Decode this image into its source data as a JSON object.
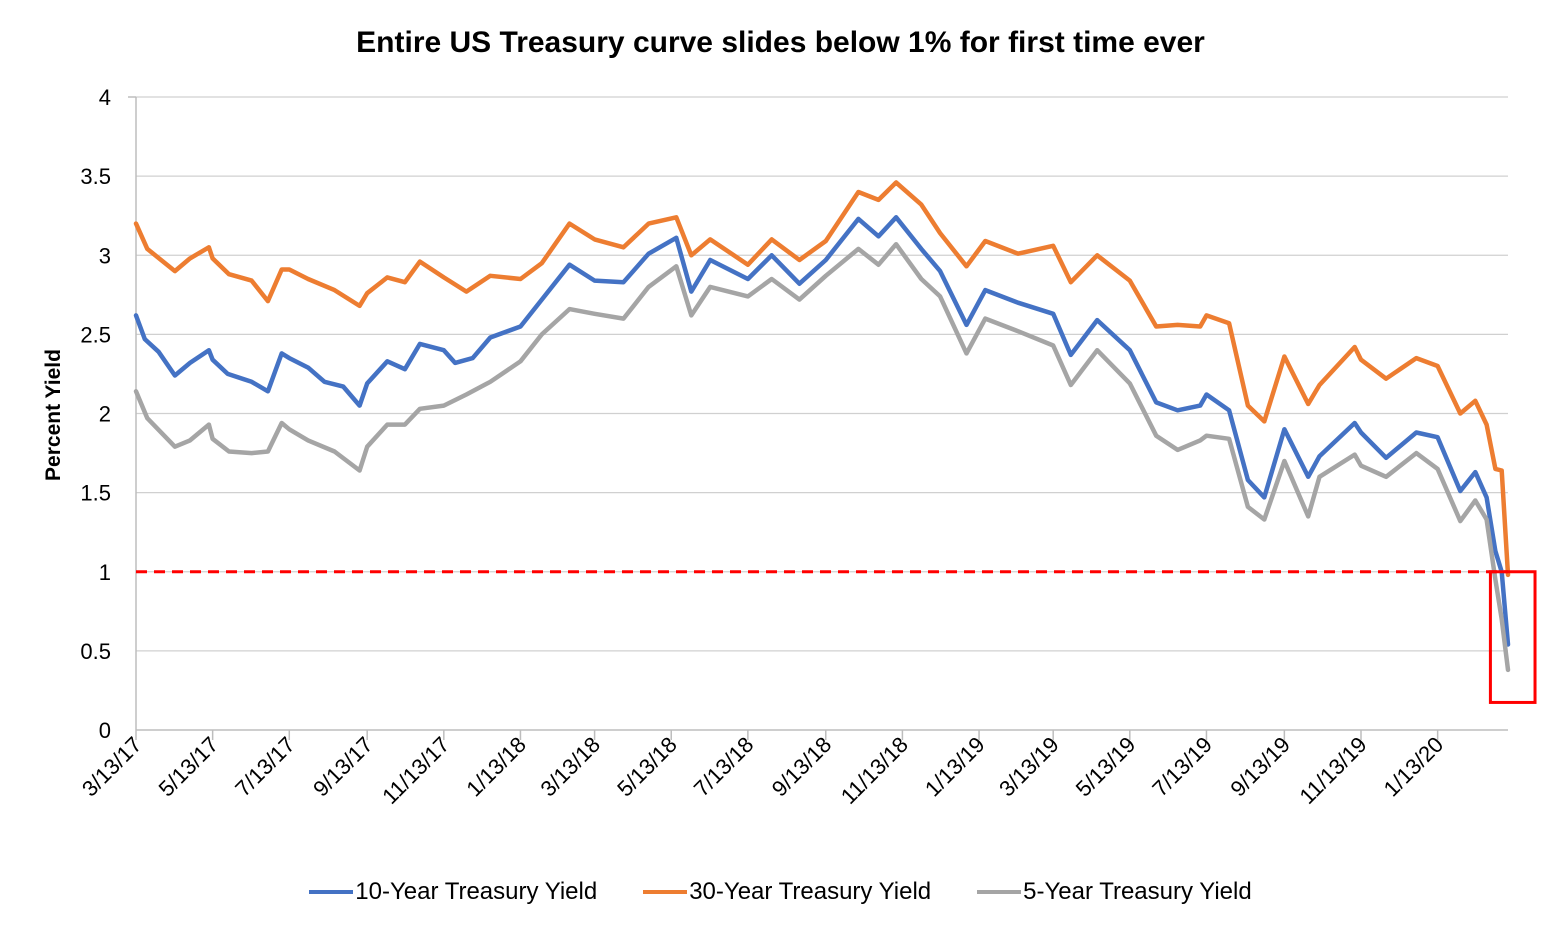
{
  "chart_data": {
    "type": "line",
    "title": "Entire US Treasury curve slides below 1% for first time ever",
    "ylabel": "Percent Yield",
    "xlabel": "",
    "ylim": [
      0,
      4
    ],
    "yticks": [
      "0",
      "0.5",
      "1",
      "1.5",
      "2",
      "2.5",
      "3",
      "3.5",
      "4"
    ],
    "xticks": [
      "3/13/17",
      "5/13/17",
      "7/13/17",
      "9/13/17",
      "11/13/17",
      "1/13/18",
      "3/13/18",
      "5/13/18",
      "7/13/18",
      "9/13/18",
      "11/13/18",
      "1/13/19",
      "3/13/19",
      "5/13/19",
      "7/13/19",
      "9/13/19",
      "11/13/19",
      "1/13/20"
    ],
    "x_range": [
      "2017-03-13",
      "2020-03-09"
    ],
    "grid": true,
    "legend_position": "bottom",
    "reference_line": {
      "value": 1,
      "color": "#ff0000",
      "style": "dashed"
    },
    "highlight_box": {
      "x_from": "2020-02-24",
      "x_to": "2020-03-13",
      "y_from": 0.25,
      "y_to": 1.0,
      "color": "#ff0000"
    },
    "series": [
      {
        "name": "10-Year Treasury Yield",
        "color": "#4472c4",
        "points": [
          [
            "2017-03-13",
            2.62
          ],
          [
            "2017-03-20",
            2.47
          ],
          [
            "2017-03-31",
            2.39
          ],
          [
            "2017-04-13",
            2.24
          ],
          [
            "2017-04-25",
            2.32
          ],
          [
            "2017-05-10",
            2.4
          ],
          [
            "2017-05-13",
            2.34
          ],
          [
            "2017-05-25",
            2.25
          ],
          [
            "2017-06-13",
            2.2
          ],
          [
            "2017-06-26",
            2.14
          ],
          [
            "2017-07-07",
            2.38
          ],
          [
            "2017-07-13",
            2.35
          ],
          [
            "2017-07-28",
            2.29
          ],
          [
            "2017-08-10",
            2.2
          ],
          [
            "2017-08-25",
            2.17
          ],
          [
            "2017-09-07",
            2.05
          ],
          [
            "2017-09-13",
            2.19
          ],
          [
            "2017-09-29",
            2.33
          ],
          [
            "2017-10-13",
            2.28
          ],
          [
            "2017-10-25",
            2.44
          ],
          [
            "2017-11-13",
            2.4
          ],
          [
            "2017-11-22",
            2.32
          ],
          [
            "2017-12-06",
            2.35
          ],
          [
            "2017-12-20",
            2.48
          ],
          [
            "2018-01-13",
            2.55
          ],
          [
            "2018-01-30",
            2.72
          ],
          [
            "2018-02-21",
            2.94
          ],
          [
            "2018-03-13",
            2.84
          ],
          [
            "2018-04-05",
            2.83
          ],
          [
            "2018-04-25",
            3.01
          ],
          [
            "2018-05-17",
            3.11
          ],
          [
            "2018-05-29",
            2.77
          ],
          [
            "2018-06-13",
            2.97
          ],
          [
            "2018-07-13",
            2.85
          ],
          [
            "2018-08-01",
            3.0
          ],
          [
            "2018-08-23",
            2.82
          ],
          [
            "2018-09-13",
            2.97
          ],
          [
            "2018-10-09",
            3.23
          ],
          [
            "2018-10-25",
            3.12
          ],
          [
            "2018-11-08",
            3.24
          ],
          [
            "2018-11-28",
            3.04
          ],
          [
            "2018-12-13",
            2.9
          ],
          [
            "2019-01-03",
            2.56
          ],
          [
            "2019-01-18",
            2.78
          ],
          [
            "2019-02-13",
            2.7
          ],
          [
            "2019-03-13",
            2.63
          ],
          [
            "2019-03-27",
            2.37
          ],
          [
            "2019-04-17",
            2.59
          ],
          [
            "2019-05-13",
            2.4
          ],
          [
            "2019-06-03",
            2.07
          ],
          [
            "2019-06-20",
            2.02
          ],
          [
            "2019-07-08",
            2.05
          ],
          [
            "2019-07-13",
            2.12
          ],
          [
            "2019-07-31",
            2.02
          ],
          [
            "2019-08-15",
            1.58
          ],
          [
            "2019-08-28",
            1.47
          ],
          [
            "2019-09-13",
            1.9
          ],
          [
            "2019-10-02",
            1.6
          ],
          [
            "2019-10-11",
            1.73
          ],
          [
            "2019-11-08",
            1.94
          ],
          [
            "2019-11-13",
            1.88
          ],
          [
            "2019-12-03",
            1.72
          ],
          [
            "2019-12-27",
            1.88
          ],
          [
            "2020-01-13",
            1.85
          ],
          [
            "2020-01-31",
            1.51
          ],
          [
            "2020-02-12",
            1.63
          ],
          [
            "2020-02-21",
            1.47
          ],
          [
            "2020-02-28",
            1.13
          ],
          [
            "2020-03-04",
            1.0
          ],
          [
            "2020-03-09",
            0.54
          ]
        ]
      },
      {
        "name": "30-Year Treasury Yield",
        "color": "#ed7d31",
        "points": [
          [
            "2017-03-13",
            3.2
          ],
          [
            "2017-03-22",
            3.04
          ],
          [
            "2017-04-13",
            2.9
          ],
          [
            "2017-04-25",
            2.98
          ],
          [
            "2017-05-10",
            3.05
          ],
          [
            "2017-05-13",
            2.98
          ],
          [
            "2017-05-26",
            2.88
          ],
          [
            "2017-06-13",
            2.84
          ],
          [
            "2017-06-26",
            2.71
          ],
          [
            "2017-07-07",
            2.91
          ],
          [
            "2017-07-13",
            2.91
          ],
          [
            "2017-07-28",
            2.85
          ],
          [
            "2017-08-18",
            2.78
          ],
          [
            "2017-09-07",
            2.68
          ],
          [
            "2017-09-13",
            2.76
          ],
          [
            "2017-09-29",
            2.86
          ],
          [
            "2017-10-13",
            2.83
          ],
          [
            "2017-10-25",
            2.96
          ],
          [
            "2017-11-13",
            2.86
          ],
          [
            "2017-12-01",
            2.77
          ],
          [
            "2017-12-20",
            2.87
          ],
          [
            "2018-01-13",
            2.85
          ],
          [
            "2018-01-30",
            2.95
          ],
          [
            "2018-02-21",
            3.2
          ],
          [
            "2018-03-13",
            3.1
          ],
          [
            "2018-04-05",
            3.05
          ],
          [
            "2018-04-25",
            3.2
          ],
          [
            "2018-05-17",
            3.24
          ],
          [
            "2018-05-29",
            3.0
          ],
          [
            "2018-06-13",
            3.1
          ],
          [
            "2018-07-13",
            2.94
          ],
          [
            "2018-08-01",
            3.1
          ],
          [
            "2018-08-23",
            2.97
          ],
          [
            "2018-09-13",
            3.09
          ],
          [
            "2018-10-09",
            3.4
          ],
          [
            "2018-10-25",
            3.35
          ],
          [
            "2018-11-08",
            3.46
          ],
          [
            "2018-11-28",
            3.32
          ],
          [
            "2018-12-13",
            3.14
          ],
          [
            "2019-01-03",
            2.93
          ],
          [
            "2019-01-18",
            3.09
          ],
          [
            "2019-02-13",
            3.01
          ],
          [
            "2019-03-13",
            3.06
          ],
          [
            "2019-03-27",
            2.83
          ],
          [
            "2019-04-17",
            3.0
          ],
          [
            "2019-05-13",
            2.84
          ],
          [
            "2019-06-03",
            2.55
          ],
          [
            "2019-06-20",
            2.56
          ],
          [
            "2019-07-08",
            2.55
          ],
          [
            "2019-07-13",
            2.62
          ],
          [
            "2019-07-31",
            2.57
          ],
          [
            "2019-08-15",
            2.05
          ],
          [
            "2019-08-28",
            1.95
          ],
          [
            "2019-09-13",
            2.36
          ],
          [
            "2019-10-02",
            2.06
          ],
          [
            "2019-10-11",
            2.18
          ],
          [
            "2019-11-08",
            2.42
          ],
          [
            "2019-11-13",
            2.34
          ],
          [
            "2019-12-03",
            2.22
          ],
          [
            "2019-12-27",
            2.35
          ],
          [
            "2020-01-13",
            2.3
          ],
          [
            "2020-01-31",
            2.0
          ],
          [
            "2020-02-12",
            2.08
          ],
          [
            "2020-02-21",
            1.93
          ],
          [
            "2020-02-28",
            1.65
          ],
          [
            "2020-03-04",
            1.64
          ],
          [
            "2020-03-09",
            0.98
          ]
        ]
      },
      {
        "name": "5-Year Treasury Yield",
        "color": "#a5a5a5",
        "points": [
          [
            "2017-03-13",
            2.14
          ],
          [
            "2017-03-22",
            1.97
          ],
          [
            "2017-04-13",
            1.79
          ],
          [
            "2017-04-25",
            1.83
          ],
          [
            "2017-05-10",
            1.93
          ],
          [
            "2017-05-13",
            1.84
          ],
          [
            "2017-05-26",
            1.76
          ],
          [
            "2017-06-13",
            1.75
          ],
          [
            "2017-06-26",
            1.76
          ],
          [
            "2017-07-07",
            1.94
          ],
          [
            "2017-07-13",
            1.9
          ],
          [
            "2017-07-28",
            1.83
          ],
          [
            "2017-08-18",
            1.76
          ],
          [
            "2017-09-07",
            1.64
          ],
          [
            "2017-09-13",
            1.79
          ],
          [
            "2017-09-29",
            1.93
          ],
          [
            "2017-10-13",
            1.93
          ],
          [
            "2017-10-25",
            2.03
          ],
          [
            "2017-11-13",
            2.05
          ],
          [
            "2017-12-01",
            2.12
          ],
          [
            "2017-12-20",
            2.2
          ],
          [
            "2018-01-13",
            2.33
          ],
          [
            "2018-01-30",
            2.5
          ],
          [
            "2018-02-21",
            2.66
          ],
          [
            "2018-03-13",
            2.63
          ],
          [
            "2018-04-05",
            2.6
          ],
          [
            "2018-04-25",
            2.8
          ],
          [
            "2018-05-17",
            2.93
          ],
          [
            "2018-05-29",
            2.62
          ],
          [
            "2018-06-13",
            2.8
          ],
          [
            "2018-07-13",
            2.74
          ],
          [
            "2018-08-01",
            2.85
          ],
          [
            "2018-08-23",
            2.72
          ],
          [
            "2018-09-13",
            2.87
          ],
          [
            "2018-10-09",
            3.04
          ],
          [
            "2018-10-25",
            2.94
          ],
          [
            "2018-11-08",
            3.07
          ],
          [
            "2018-11-28",
            2.85
          ],
          [
            "2018-12-13",
            2.74
          ],
          [
            "2019-01-03",
            2.38
          ],
          [
            "2019-01-18",
            2.6
          ],
          [
            "2019-02-13",
            2.52
          ],
          [
            "2019-03-13",
            2.43
          ],
          [
            "2019-03-27",
            2.18
          ],
          [
            "2019-04-17",
            2.4
          ],
          [
            "2019-05-13",
            2.19
          ],
          [
            "2019-06-03",
            1.86
          ],
          [
            "2019-06-20",
            1.77
          ],
          [
            "2019-07-08",
            1.83
          ],
          [
            "2019-07-13",
            1.86
          ],
          [
            "2019-07-31",
            1.84
          ],
          [
            "2019-08-15",
            1.41
          ],
          [
            "2019-08-28",
            1.33
          ],
          [
            "2019-09-13",
            1.7
          ],
          [
            "2019-10-02",
            1.35
          ],
          [
            "2019-10-11",
            1.6
          ],
          [
            "2019-11-08",
            1.74
          ],
          [
            "2019-11-13",
            1.67
          ],
          [
            "2019-12-03",
            1.6
          ],
          [
            "2019-12-27",
            1.75
          ],
          [
            "2020-01-13",
            1.65
          ],
          [
            "2020-01-31",
            1.32
          ],
          [
            "2020-02-12",
            1.45
          ],
          [
            "2020-02-21",
            1.33
          ],
          [
            "2020-02-28",
            0.95
          ],
          [
            "2020-03-04",
            0.7
          ],
          [
            "2020-03-09",
            0.38
          ]
        ]
      }
    ]
  }
}
